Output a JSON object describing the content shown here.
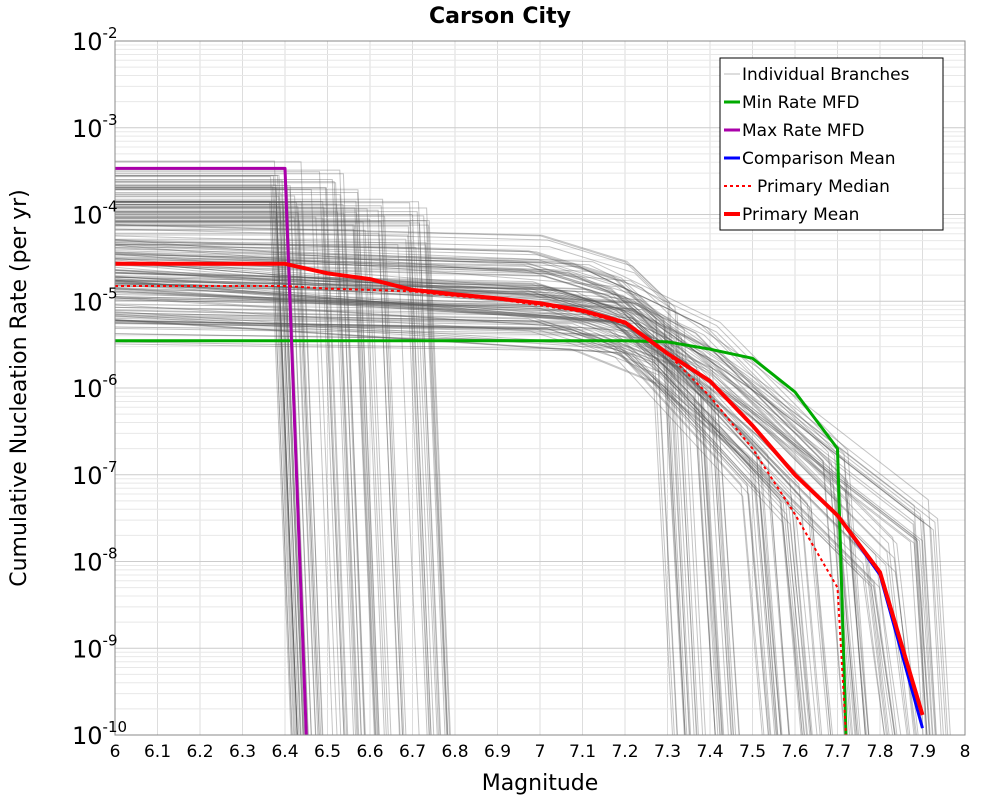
{
  "chart_data": {
    "type": "line",
    "title": "Carson City",
    "xlabel": "Magnitude",
    "ylabel": "Cumulative Nucleation Rate (per yr)",
    "xscale": "linear",
    "yscale": "log",
    "xlim": [
      6,
      8
    ],
    "ylim": [
      1e-10,
      0.01
    ],
    "grid": true,
    "legend_position": "top-right",
    "x_ticks": [
      "6",
      "6.1",
      "6.2",
      "6.3",
      "6.4",
      "6.5",
      "6.6",
      "6.7",
      "6.8",
      "6.9",
      "7",
      "7.1",
      "7.2",
      "7.3",
      "7.4",
      "7.5",
      "7.6",
      "7.7",
      "7.8",
      "7.9",
      "8"
    ],
    "y_ticks": [
      {
        "base": "10",
        "exp": "-2",
        "value": 0.01
      },
      {
        "base": "10",
        "exp": "-3",
        "value": 0.001
      },
      {
        "base": "10",
        "exp": "-4",
        "value": 0.0001
      },
      {
        "base": "10",
        "exp": "-5",
        "value": 1e-05
      },
      {
        "base": "10",
        "exp": "-6",
        "value": 1e-06
      },
      {
        "base": "10",
        "exp": "-7",
        "value": 1e-07
      },
      {
        "base": "10",
        "exp": "-8",
        "value": 1e-08
      },
      {
        "base": "10",
        "exp": "-9",
        "value": 1e-09
      },
      {
        "base": "10",
        "exp": "-10",
        "value": 1e-10
      }
    ],
    "series": [
      {
        "name": "Individual Branches",
        "color": "#555555",
        "style": "thin",
        "note_count": "many",
        "representative_branches": [
          {
            "x": [
              6.0,
              6.4,
              6.45
            ],
            "y": [
              0.00022,
              0.00022,
              1e-10
            ]
          },
          {
            "x": [
              6.0,
              6.4,
              6.45
            ],
            "y": [
              0.00015,
              0.00015,
              1e-10
            ]
          },
          {
            "x": [
              6.0,
              6.5,
              6.55
            ],
            "y": [
              0.00018,
              0.00018,
              1e-10
            ]
          },
          {
            "x": [
              6.0,
              6.6,
              6.65
            ],
            "y": [
              0.00012,
              0.00012,
              1e-10
            ]
          },
          {
            "x": [
              6.0,
              6.7,
              6.75
            ],
            "y": [
              8e-05,
              8e-05,
              1e-10
            ]
          },
          {
            "x": [
              6.0,
              7.0,
              7.2,
              7.3,
              7.35
            ],
            "y": [
              4e-05,
              3e-05,
              1.5e-05,
              5e-06,
              1e-10
            ]
          },
          {
            "x": [
              6.0,
              7.0,
              7.2,
              7.4,
              7.45
            ],
            "y": [
              2e-05,
              1.6e-05,
              8e-06,
              1e-06,
              1e-10
            ]
          },
          {
            "x": [
              6.0,
              7.0,
              7.2,
              7.5,
              7.55
            ],
            "y": [
              1e-05,
              8e-06,
              4e-06,
              1e-07,
              1e-10
            ]
          },
          {
            "x": [
              6.0,
              7.1,
              7.3,
              7.6,
              7.65
            ],
            "y": [
              6e-06,
              5e-06,
              2e-06,
              5e-08,
              1e-10
            ]
          },
          {
            "x": [
              6.0,
              7.2,
              7.5,
              7.8,
              7.85
            ],
            "y": [
              1.2e-05,
              5e-06,
              3e-07,
              1e-08,
              1e-10
            ]
          },
          {
            "x": [
              6.0,
              7.2,
              7.5,
              7.9,
              7.93
            ],
            "y": [
              3e-05,
              1e-05,
              1e-06,
              3e-08,
              1e-10
            ]
          },
          {
            "x": [
              6.0,
              7.1,
              7.4,
              7.7,
              7.75
            ],
            "y": [
              2.5e-05,
              1.5e-05,
              3e-06,
              1e-07,
              1e-10
            ]
          }
        ]
      },
      {
        "name": "Min Rate MFD",
        "color": "#00aa00",
        "style": "solid",
        "x": [
          6.0,
          7.2,
          7.3,
          7.4,
          7.5,
          7.6,
          7.7,
          7.72
        ],
        "y": [
          3.5e-06,
          3.5e-06,
          3.4e-06,
          2.8e-06,
          2.2e-06,
          9e-07,
          2e-07,
          1e-10
        ]
      },
      {
        "name": "Max Rate MFD",
        "color": "#aa00aa",
        "style": "solid",
        "x": [
          6.0,
          6.4,
          6.45
        ],
        "y": [
          0.00034,
          0.00034,
          1e-10
        ]
      },
      {
        "name": "Comparison Mean",
        "color": "#0000ff",
        "style": "solid",
        "x": [
          7.7,
          7.8,
          7.9
        ],
        "y": [
          3.4e-08,
          7e-09,
          1.2e-10
        ]
      },
      {
        "name": "Primary Median",
        "color": "#ff0000",
        "style": "dotted",
        "x": [
          6.0,
          6.4,
          6.5,
          6.6,
          6.7,
          6.8,
          6.9,
          7.0,
          7.1,
          7.2,
          7.3,
          7.4,
          7.5,
          7.6,
          7.7,
          7.72
        ],
        "y": [
          1.5e-05,
          1.5e-05,
          1.4e-05,
          1.35e-05,
          1.3e-05,
          1.15e-05,
          1.05e-05,
          9e-06,
          7.5e-06,
          5.5e-06,
          2.5e-06,
          8e-07,
          2e-07,
          3.5e-08,
          5e-09,
          1e-10
        ]
      },
      {
        "name": "Primary Mean",
        "color": "#ff0000",
        "style": "thick",
        "x": [
          6.0,
          6.4,
          6.5,
          6.6,
          6.7,
          6.8,
          6.9,
          7.0,
          7.1,
          7.2,
          7.3,
          7.4,
          7.5,
          7.6,
          7.7,
          7.8,
          7.9
        ],
        "y": [
          2.7e-05,
          2.7e-05,
          2.1e-05,
          1.8e-05,
          1.35e-05,
          1.2e-05,
          1.08e-05,
          9.5e-06,
          7.8e-06,
          5.7e-06,
          2.5e-06,
          1.2e-06,
          3.7e-07,
          1e-07,
          3.4e-08,
          7.5e-09,
          1.7e-10
        ]
      }
    ]
  }
}
